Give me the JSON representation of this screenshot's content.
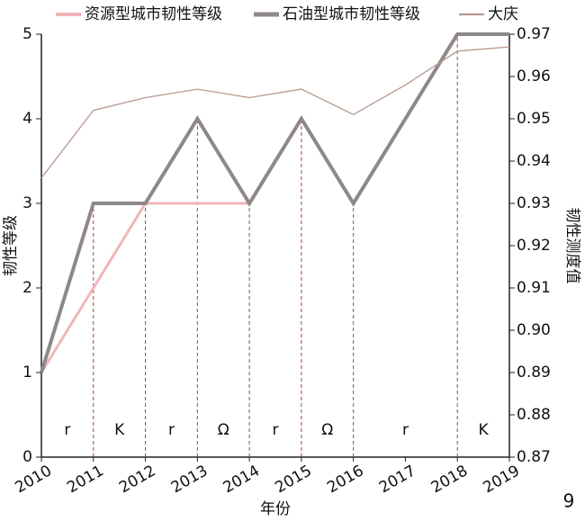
{
  "chart_data": {
    "type": "line",
    "x_label": "年份",
    "y_label": "韧性等级",
    "y2_label": "韧性测度值",
    "x": [
      2010,
      2011,
      2012,
      2013,
      2014,
      2015,
      2016,
      2017,
      2018,
      2019
    ],
    "xlim": [
      2010,
      2019
    ],
    "xticks": [
      2010,
      2011,
      2012,
      2013,
      2014,
      2015,
      2016,
      2017,
      2018,
      2019
    ],
    "ylim": [
      0,
      5
    ],
    "yticks": [
      0,
      1,
      2,
      3,
      4,
      5
    ],
    "y2lim": [
      0.87,
      0.97
    ],
    "y2ticks": [
      0.87,
      0.88,
      0.89,
      {
        "value": 0.9,
        "label": "0.90"
      },
      0.91,
      0.92,
      0.93,
      0.94,
      0.95,
      0.96,
      0.97
    ],
    "series": [
      {
        "name": "资源型城市韧性等级",
        "color": "#f2b5ba",
        "values": [
          1,
          2,
          3,
          3,
          3,
          null,
          null,
          null,
          null,
          null
        ]
      },
      {
        "name": "石油型城市韧性等级",
        "color": "#8e8888",
        "values": [
          1,
          3,
          3,
          4,
          3,
          4,
          3,
          4,
          5,
          5
        ]
      },
      {
        "name": "大庆",
        "color": "#b8998f",
        "axis": "y2",
        "values": [
          0.936,
          0.952,
          0.955,
          0.957,
          0.955,
          0.957,
          0.951,
          0.958,
          0.966,
          0.967
        ]
      }
    ],
    "phases": [
      {
        "label": "r",
        "start": 2010,
        "end": 2011
      },
      {
        "label": "K",
        "start": 2011,
        "end": 2012
      },
      {
        "label": "r",
        "start": 2012,
        "end": 2013
      },
      {
        "label": "Ω",
        "start": 2013,
        "end": 2014
      },
      {
        "label": "r",
        "start": 2014,
        "end": 2015
      },
      {
        "label": "Ω",
        "start": 2015,
        "end": 2016
      },
      {
        "label": "r",
        "start": 2016,
        "end": 2018
      },
      {
        "label": "K",
        "start": 2018,
        "end": 2019
      }
    ],
    "page_number": "9"
  }
}
